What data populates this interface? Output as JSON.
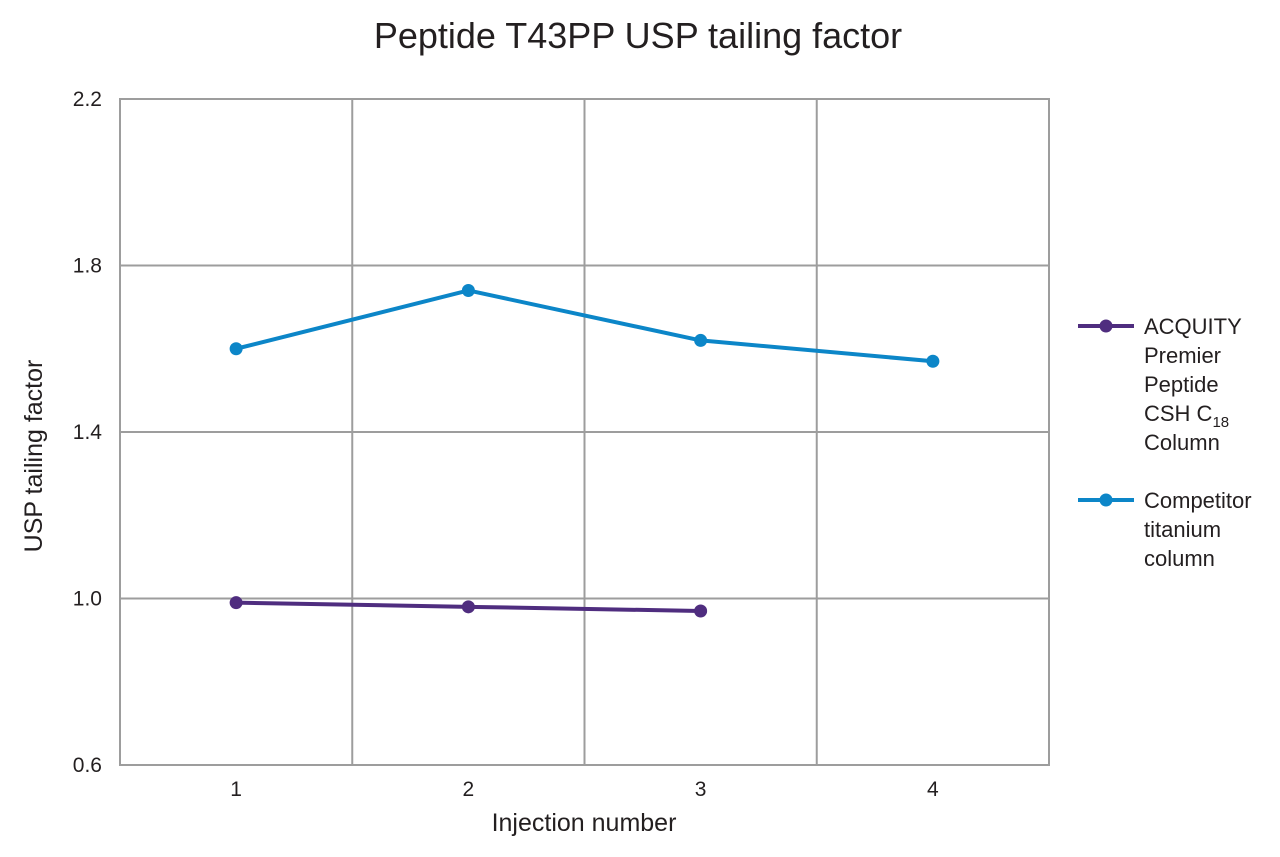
{
  "chart_data": {
    "type": "line",
    "title": "Peptide T43PP USP tailing factor",
    "xlabel": "Injection number",
    "ylabel": "USP tailing factor",
    "x": [
      1,
      2,
      3,
      4
    ],
    "x_tick_labels": [
      "1",
      "2",
      "3",
      "4"
    ],
    "y_tick_labels": [
      "0.6",
      "1.0",
      "1.4",
      "1.8",
      "2.2"
    ],
    "y_ticks": [
      0.6,
      1.0,
      1.4,
      1.8,
      2.2
    ],
    "xlim": [
      0.5,
      4.5
    ],
    "ylim": [
      0.6,
      2.2
    ],
    "grid": true,
    "legend_position": "right",
    "series": [
      {
        "name": "ACQUITY Premier Peptide CSH C18 Column",
        "legend_lines": [
          "ACQUITY",
          "Premier",
          "Peptide",
          "CSH C",
          "Column"
        ],
        "legend_subscript": "18",
        "color": "#4f2d7f",
        "x": [
          1,
          2,
          3
        ],
        "values": [
          0.99,
          0.98,
          0.97
        ]
      },
      {
        "name": "Competitor titanium column",
        "legend_lines": [
          "Competitor",
          "titanium",
          "column"
        ],
        "color": "#0c86c8",
        "x": [
          1,
          2,
          3,
          4
        ],
        "values": [
          1.6,
          1.74,
          1.62,
          1.57
        ]
      }
    ]
  }
}
